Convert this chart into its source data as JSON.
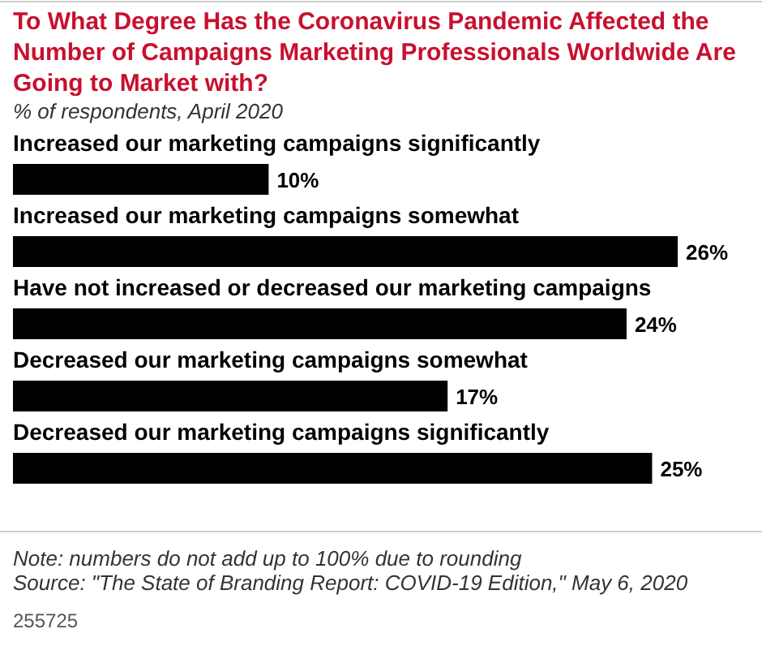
{
  "chart_data": {
    "type": "bar",
    "orientation": "horizontal",
    "title": "To What Degree Has the Coronavirus Pandemic Affected the Number of Campaigns Marketing Professionals Worldwide Are Going to Market with?",
    "subtitle": "% of respondents, April 2020",
    "categories": [
      "Increased our marketing campaigns significantly",
      "Increased our marketing campaigns somewhat",
      "Have not increased or decreased our marketing campaigns",
      "Decreased our marketing campaigns somewhat",
      "Decreased our marketing campaigns significantly"
    ],
    "values": [
      10,
      26,
      24,
      17,
      25
    ],
    "color": "#000000",
    "data_labels": true,
    "value_labels": [
      "10%",
      "26%",
      "24%",
      "17%",
      "25%"
    ],
    "annotations": [
      "Note: numbers do not add up to 100% due to rounding",
      "Source: \"The State of Branding Report: COVID-19 Edition,\" May 6, 2020",
      "255725"
    ]
  }
}
